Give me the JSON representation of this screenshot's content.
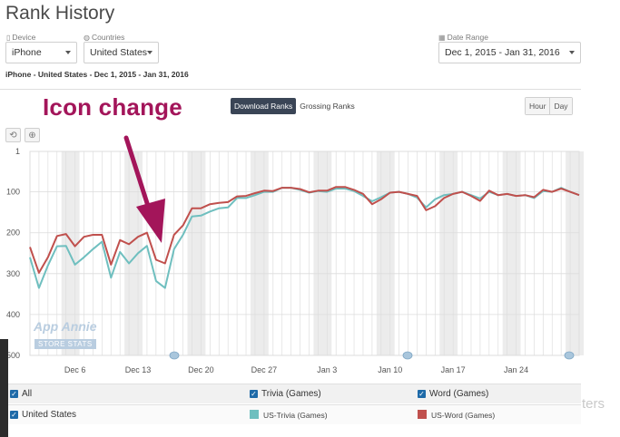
{
  "header": {
    "title": "Rank History"
  },
  "filters": {
    "device_label": "Device",
    "device_value": "iPhone",
    "countries_label": "Countries",
    "countries_value": "United States",
    "date_label": "Date Range",
    "date_value": "Dec 1, 2015 - Jan 31, 2016"
  },
  "subtitle": "iPhone - United States - Dec 1, 2015 - Jan 31, 2016",
  "annotation": "Icon change",
  "rank_toggle": {
    "download": "Download Ranks",
    "grossing": "Grossing Ranks"
  },
  "granularity": {
    "hour": "Hour",
    "day": "Day"
  },
  "icons": {
    "reset": "reset-zoom-icon",
    "zoom": "zoom-icon",
    "device": "phone-icon",
    "countries": "globe-icon",
    "date": "calendar-icon"
  },
  "watermark": {
    "name": "App Annie",
    "badge": "STORE STATS"
  },
  "chart_data": {
    "type": "line",
    "y_reversed": true,
    "ylim": [
      1,
      500
    ],
    "yticks": [
      "1",
      "100",
      "200",
      "300",
      "400",
      "500"
    ],
    "xticks": [
      "Dec 6",
      "Dec 13",
      "Dec 20",
      "Dec 27",
      "Jan 3",
      "Jan 10",
      "Jan 17",
      "Jan 24"
    ],
    "x": [
      "Dec 1",
      "Dec 2",
      "Dec 3",
      "Dec 4",
      "Dec 5",
      "Dec 6",
      "Dec 7",
      "Dec 8",
      "Dec 9",
      "Dec 10",
      "Dec 11",
      "Dec 12",
      "Dec 13",
      "Dec 14",
      "Dec 15",
      "Dec 16",
      "Dec 17",
      "Dec 18",
      "Dec 19",
      "Dec 20",
      "Dec 21",
      "Dec 22",
      "Dec 23",
      "Dec 24",
      "Dec 25",
      "Dec 26",
      "Dec 27",
      "Dec 28",
      "Dec 29",
      "Dec 30",
      "Dec 31",
      "Jan 1",
      "Jan 2",
      "Jan 3",
      "Jan 4",
      "Jan 5",
      "Jan 6",
      "Jan 7",
      "Jan 8",
      "Jan 9",
      "Jan 10",
      "Jan 11",
      "Jan 12",
      "Jan 13",
      "Jan 14",
      "Jan 15",
      "Jan 16",
      "Jan 17",
      "Jan 18",
      "Jan 19",
      "Jan 20",
      "Jan 21",
      "Jan 22",
      "Jan 23",
      "Jan 24",
      "Jan 25",
      "Jan 26",
      "Jan 27",
      "Jan 28",
      "Jan 29",
      "Jan 30",
      "Jan 31"
    ],
    "series": [
      {
        "name": "US-Trivia (Games)",
        "color": "#6fbfbf",
        "values": [
          260,
          335,
          280,
          233,
          232,
          278,
          260,
          240,
          222,
          310,
          247,
          275,
          250,
          232,
          318,
          335,
          240,
          205,
          160,
          158,
          148,
          140,
          138,
          115,
          115,
          108,
          100,
          100,
          90,
          90,
          95,
          102,
          98,
          100,
          92,
          92,
          98,
          110,
          123,
          113,
          102,
          100,
          105,
          114,
          138,
          118,
          108,
          105,
          100,
          108,
          116,
          100,
          108,
          105,
          110,
          108,
          115,
          98,
          100,
          90,
          100,
          108
        ]
      },
      {
        "name": "US-Word (Games)",
        "color": "#c0504d",
        "values": [
          235,
          298,
          260,
          208,
          203,
          233,
          210,
          205,
          205,
          278,
          218,
          228,
          210,
          200,
          266,
          275,
          205,
          182,
          140,
          140,
          130,
          127,
          125,
          111,
          110,
          103,
          97,
          98,
          90,
          90,
          93,
          101,
          97,
          97,
          88,
          88,
          95,
          105,
          130,
          118,
          102,
          100,
          105,
          110,
          145,
          135,
          115,
          105,
          100,
          110,
          122,
          97,
          108,
          105,
          110,
          108,
          113,
          95,
          100,
          92,
          100,
          108
        ]
      }
    ]
  },
  "legend": {
    "all": "All",
    "trivia_group": "Trivia (Games)",
    "word_group": "Word (Games)",
    "country": "United States",
    "trivia_series": "US-Trivia (Games)",
    "word_series": "US-Word (Games)",
    "ghost": "ters"
  }
}
